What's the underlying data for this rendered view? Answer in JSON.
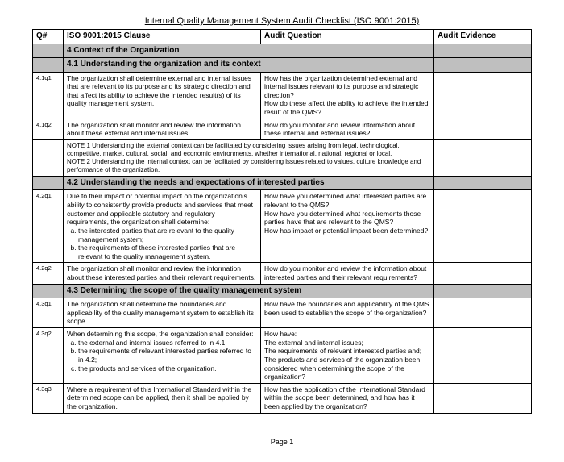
{
  "title": "Internal Quality Management System Audit Checklist (ISO 9001:2015)",
  "headers": {
    "q": "Q#",
    "clause": "ISO 9001:2015 Clause",
    "question": "Audit Question",
    "evidence": "Audit Evidence"
  },
  "section4": "4 Context of the Organization",
  "sub41": "4.1 Understanding the organization and its context",
  "r41q1": {
    "q": "4.1q1",
    "clause": "The organization shall determine external and internal issues that are relevant to its purpose and its strategic direction and that affect its ability to achieve the intended result(s) of its quality management system.",
    "question": "How has the organization determined external and internal issues relevant to its purpose and strategic direction?\nHow do these affect the ability to achieve the intended result of the QMS?"
  },
  "r41q2": {
    "q": "4.1q2",
    "clause": "The organization shall monitor and review the information about these external and internal issues.",
    "question": "How do you monitor and review information about these internal and external issues?"
  },
  "note41": "NOTE 1 Understanding the external context can be facilitated by considering issues arising from legal, technological, competitive, market, cultural, social, and economic environments, whether international, national, regional or local.\nNOTE 2 Understanding the internal context can be facilitated by considering issues related to values, culture knowledge and performance of the organization.",
  "sub42": "4.2 Understanding the needs and expectations of interested parties",
  "r42q1": {
    "q": "4.2q1",
    "clause_intro": "Due to their impact or potential impact on the organization's ability to consistently provide products and services that meet customer and applicable statutory and regulatory requirements, the organization shall determine:",
    "clause_a": "the interested parties that are relevant to the quality management system;",
    "clause_b": "the requirements of these interested parties that are relevant to the quality management system.",
    "question": "How have you determined what interested parties are relevant to the QMS?\nHow have you determined what requirements those parties have that are relevant to the QMS?\nHow has impact or potential impact been determined?"
  },
  "r42q2": {
    "q": "4.2q2",
    "clause": "The organization shall monitor and review the information about these interested parties and their relevant requirements.",
    "question": "How do you monitor and review the information about interested parties and their relevant requirements?"
  },
  "sub43": "4.3 Determining the scope of the quality management system",
  "r43q1": {
    "q": "4.3q1",
    "clause": "The organization shall determine the boundaries and applicability of the quality management system to establish its scope.",
    "question": "How have the boundaries and applicability of the QMS been used to establish the scope of the organization?"
  },
  "r43q2": {
    "q": "4.3q2",
    "clause_intro": "When determining this scope, the organization shall consider:",
    "clause_a": "the external and internal issues referred to in 4.1;",
    "clause_b": "the requirements of relevant interested parties referred to in 4.2;",
    "clause_c": "the products and services of the organization.",
    "question": "How have:\nThe external and internal issues;\nThe requirements of relevant interested parties and;\nThe products and services of the organization been considered when determining the scope of the organization?"
  },
  "r43q3": {
    "q": "4.3q3",
    "clause": "Where a requirement of this International Standard within the determined scope can be applied, then it shall be applied by the organization.",
    "question": "How has the application of the International Standard within the scope been determined, and how has it been applied by the organization?"
  },
  "footer": "Page 1"
}
